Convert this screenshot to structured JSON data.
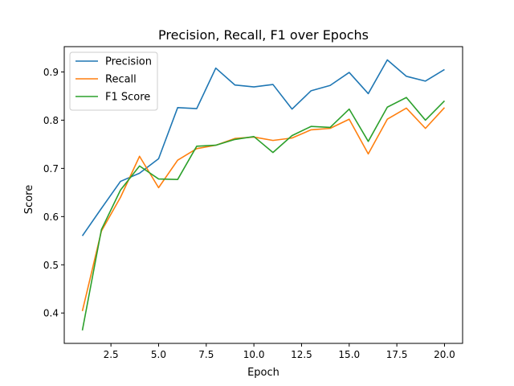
{
  "chart_data": {
    "type": "line",
    "title": "Precision, Recall, F1 over Epochs",
    "xlabel": "Epoch",
    "ylabel": "Score",
    "xlim": [
      0.05,
      20.95
    ],
    "ylim": [
      0.337,
      0.9525
    ],
    "xticks": [
      2.5,
      5.0,
      7.5,
      10.0,
      12.5,
      15.0,
      17.5,
      20.0
    ],
    "xtick_labels": [
      "2.5",
      "5.0",
      "7.5",
      "10.0",
      "12.5",
      "15.0",
      "17.5",
      "20.0"
    ],
    "yticks": [
      0.4,
      0.5,
      0.6,
      0.7,
      0.8,
      0.9
    ],
    "ytick_labels": [
      "0.4",
      "0.5",
      "0.6",
      "0.7",
      "0.8",
      "0.9"
    ],
    "grid": false,
    "legend_position": "upper-left",
    "x": [
      1,
      2,
      3,
      4,
      5,
      6,
      7,
      8,
      9,
      10,
      11,
      12,
      13,
      14,
      15,
      16,
      17,
      18,
      19,
      20
    ],
    "series": [
      {
        "name": "Precision",
        "color": "#1f77b4",
        "values": [
          0.56,
          0.617,
          0.673,
          0.69,
          0.72,
          0.826,
          0.824,
          0.908,
          0.873,
          0.869,
          0.874,
          0.823,
          0.861,
          0.872,
          0.899,
          0.855,
          0.925,
          0.891,
          0.881,
          0.905
        ]
      },
      {
        "name": "Recall",
        "color": "#ff7f0e",
        "values": [
          0.404,
          0.57,
          0.64,
          0.725,
          0.66,
          0.717,
          0.741,
          0.748,
          0.762,
          0.765,
          0.758,
          0.763,
          0.78,
          0.783,
          0.802,
          0.73,
          0.802,
          0.825,
          0.783,
          0.826
        ]
      },
      {
        "name": "F1 Score",
        "color": "#2ca02c",
        "values": [
          0.364,
          0.573,
          0.655,
          0.705,
          0.678,
          0.677,
          0.746,
          0.748,
          0.76,
          0.766,
          0.733,
          0.768,
          0.787,
          0.785,
          0.823,
          0.756,
          0.827,
          0.847,
          0.8,
          0.84
        ]
      }
    ]
  }
}
